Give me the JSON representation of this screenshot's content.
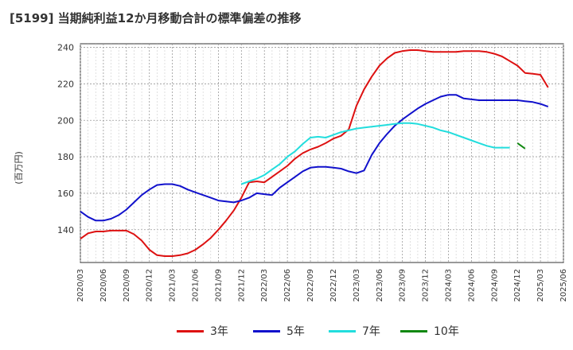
{
  "chart_data": {
    "type": "line",
    "title": "[5199]  当期純利益12か月移動合計の標準偏差の推移",
    "ylabel": "(百万円)",
    "xlabel": "",
    "ylim": [
      122,
      242
    ],
    "yticks": [
      140,
      160,
      180,
      200,
      220,
      240
    ],
    "xticks": [
      "2020/03",
      "2020/06",
      "2020/09",
      "2020/12",
      "2021/03",
      "2021/06",
      "2021/09",
      "2021/12",
      "2022/03",
      "2022/06",
      "2022/09",
      "2022/12",
      "2023/03",
      "2023/06",
      "2023/09",
      "2023/12",
      "2024/03",
      "2024/06",
      "2024/09",
      "2024/12",
      "2025/03",
      "2025/06"
    ],
    "grid": true,
    "legend_position": "bottom",
    "series": [
      {
        "name": "3年",
        "color": "#dd1111",
        "start": "2020/03",
        "values": [
          135,
          138,
          139,
          139,
          139.5,
          139.5,
          139.5,
          137.5,
          134,
          129,
          126,
          125.5,
          125.5,
          126,
          127,
          129,
          132,
          135.5,
          140,
          145,
          150.5,
          157.5,
          166,
          166.5,
          166,
          169,
          172,
          175,
          179,
          182,
          184,
          185.5,
          187.5,
          190,
          191.5,
          195,
          208,
          217,
          224,
          230,
          234,
          237,
          238,
          238.5,
          238.5,
          238,
          237.5,
          237.5,
          237.5,
          237.5,
          238,
          238,
          238,
          237.5,
          236.5,
          235,
          232.5,
          230,
          226,
          225.5,
          225,
          218
        ]
      },
      {
        "name": "5年",
        "color": "#1111cc",
        "start": "2020/03",
        "values": [
          150,
          147,
          145,
          145,
          146,
          148,
          151,
          155,
          159,
          162,
          164.5,
          165,
          165,
          164,
          162,
          160.5,
          159,
          157.5,
          156,
          155.5,
          155,
          156,
          157.5,
          160,
          159.5,
          159,
          163,
          166,
          169,
          172,
          174,
          174.5,
          174.5,
          174,
          173.5,
          172,
          171,
          172.5,
          181,
          187.5,
          192.5,
          197,
          200.5,
          203.5,
          206.5,
          209,
          211,
          213,
          214,
          214,
          212,
          211.5,
          211,
          211,
          211,
          211,
          211,
          211,
          210.5,
          210,
          209,
          207.5
        ]
      },
      {
        "name": "7年",
        "color": "#22dddd",
        "start": "2021/12",
        "values": [
          165,
          166.5,
          168,
          170,
          173,
          176,
          180,
          183,
          187,
          190.5,
          191,
          190.5,
          192,
          193.5,
          194.5,
          195.5,
          196,
          196.5,
          197,
          197.5,
          198,
          198.5,
          198.5,
          198,
          197,
          196,
          194.5,
          193.5,
          192,
          190.5,
          189,
          187.5,
          186,
          185,
          185,
          185
        ]
      },
      {
        "name": "10年",
        "color": "#118811",
        "start": "2024/12",
        "values": [
          187.5,
          184.5
        ]
      }
    ]
  }
}
